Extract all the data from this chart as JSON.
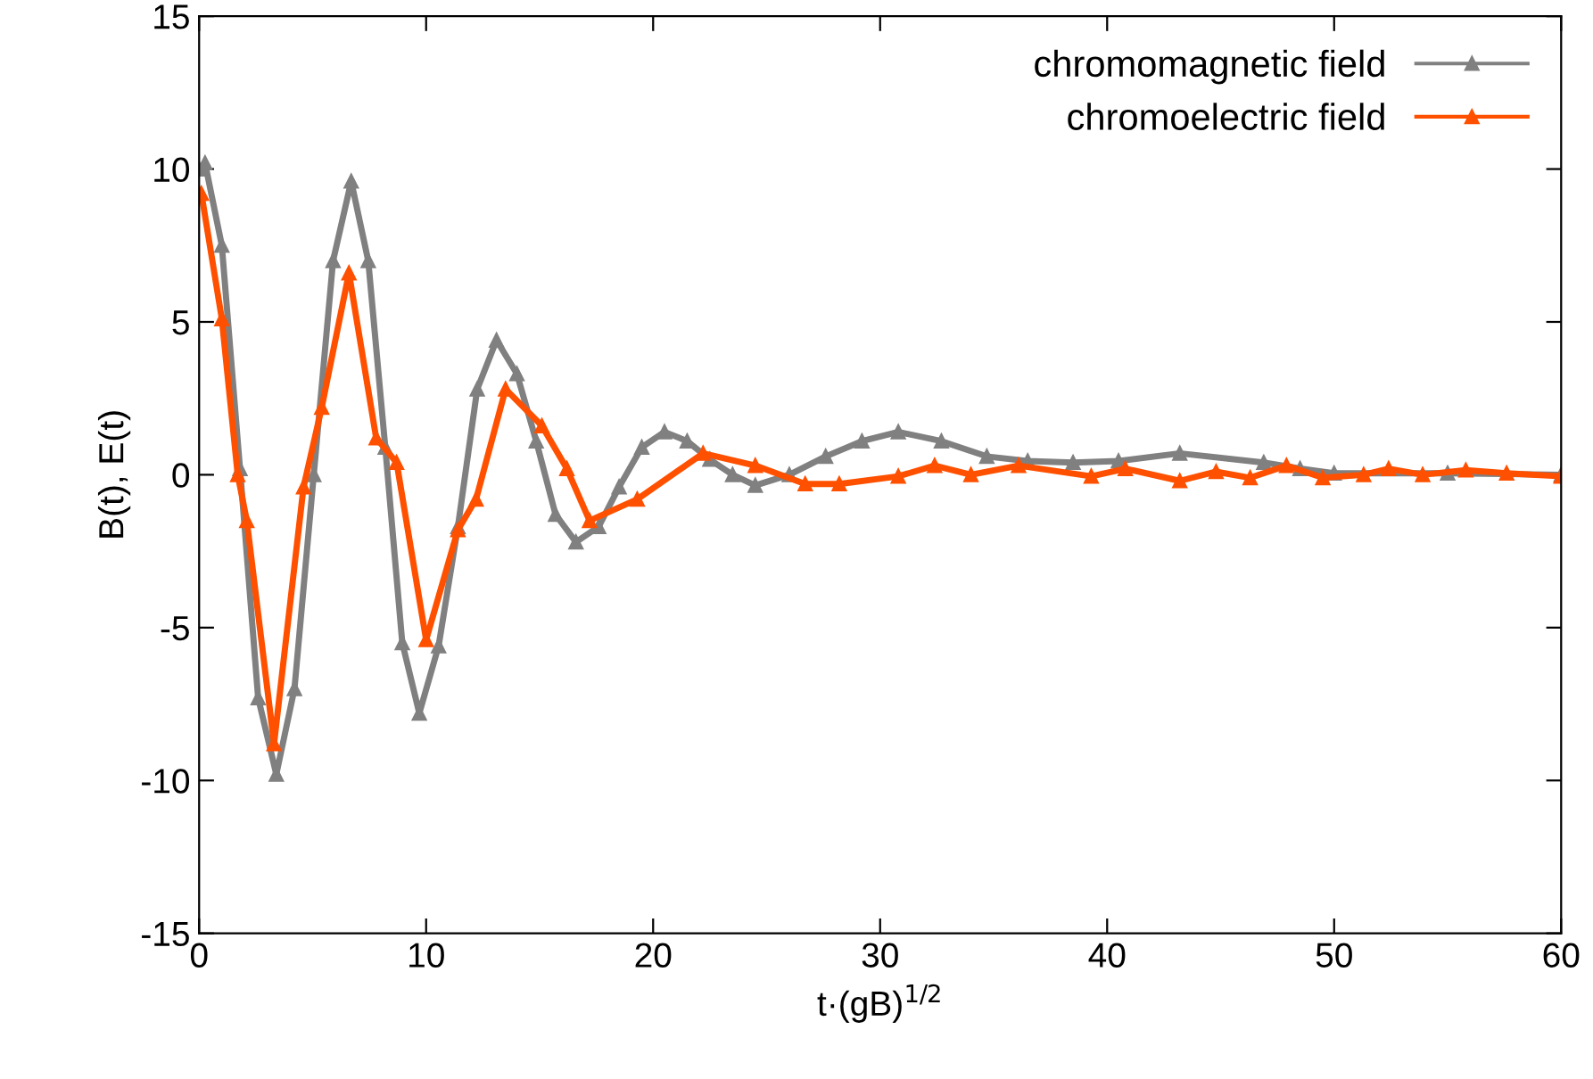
{
  "chart_data": {
    "type": "line",
    "xlabel": "t·(gB)$^{1/2}$",
    "ylabel": "B(t), E(t)",
    "xlim": [
      0,
      60
    ],
    "ylim": [
      -15,
      15
    ],
    "xticks": [
      0,
      10,
      20,
      30,
      40,
      50,
      60
    ],
    "yticks": [
      -15,
      -10,
      -5,
      0,
      5,
      10,
      15
    ],
    "grid": false,
    "legend": "top right",
    "marker": "triangle",
    "line_style": "solid",
    "series": [
      {
        "name": "chromomagnetic field",
        "color": "#808080",
        "x": [
          0,
          0.26,
          1.0,
          1.8,
          2.6,
          3.4,
          4.2,
          5.05,
          5.9,
          6.7,
          7.45,
          8.2,
          8.95,
          9.7,
          10.55,
          11.4,
          12.25,
          13.1,
          14.0,
          14.85,
          15.7,
          16.6,
          17.6,
          18.5,
          19.5,
          20.5,
          21.5,
          22.5,
          23.5,
          24.5,
          26,
          27.6,
          29.2,
          30.8,
          32.7,
          34.7,
          36.5,
          38.5,
          40.5,
          43.2,
          46.9,
          48.5,
          50,
          55,
          60
        ],
        "values": [
          10,
          10.2,
          7.5,
          0.2,
          -7.3,
          -9.8,
          -7,
          0,
          7,
          9.6,
          7,
          0.9,
          -5.5,
          -7.8,
          -5.6,
          -1.7,
          2.8,
          4.4,
          3.3,
          1.1,
          -1.3,
          -2.2,
          -1.7,
          -0.4,
          0.9,
          1.4,
          1.1,
          0.5,
          0,
          -0.35,
          0,
          0.6,
          1.1,
          1.4,
          1.1,
          0.6,
          0.45,
          0.4,
          0.45,
          0.7,
          0.4,
          0.2,
          0.05,
          0.05,
          0
        ]
      },
      {
        "name": "chromoelectric field",
        "color": "#ff5000",
        "x": [
          0,
          0.1,
          1.0,
          1.7,
          2.1,
          3.3,
          4.6,
          5.4,
          6.6,
          7.8,
          8.7,
          10.0,
          11.4,
          12.2,
          13.5,
          15.1,
          16.2,
          17.2,
          19.3,
          22.2,
          24.5,
          26.7,
          28.2,
          30.8,
          32.4,
          34,
          36.1,
          39.3,
          40.8,
          43.2,
          44.8,
          46.3,
          47.9,
          49.5,
          51.3,
          52.4,
          53.9,
          55.8,
          57.6,
          60
        ],
        "values": [
          9.2,
          9.2,
          5.1,
          0,
          -1.5,
          -8.8,
          -0.4,
          2.2,
          6.6,
          1.2,
          0.4,
          -5.4,
          -1.8,
          -0.8,
          2.8,
          1.6,
          0.2,
          -1.5,
          -0.8,
          0.7,
          0.3,
          -0.3,
          -0.3,
          -0.05,
          0.3,
          0,
          0.3,
          -0.05,
          0.2,
          -0.2,
          0.1,
          -0.1,
          0.3,
          -0.1,
          0,
          0.2,
          0,
          0.15,
          0.05,
          -0.05
        ]
      }
    ]
  }
}
